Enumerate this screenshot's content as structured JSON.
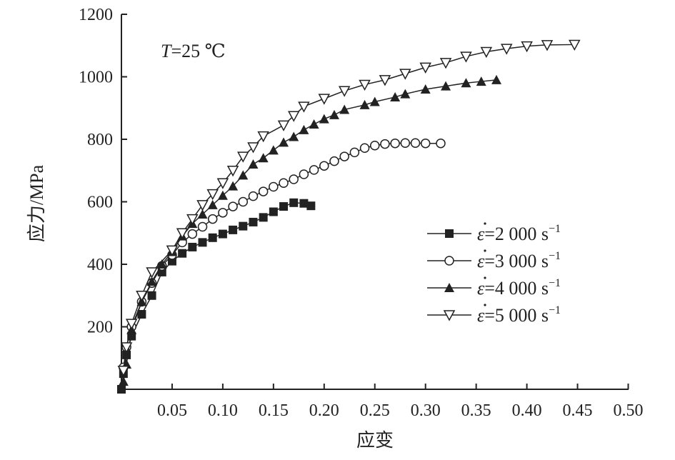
{
  "chart_data": {
    "type": "line",
    "xlabel": "应变",
    "ylabel": "应力/MPa",
    "annotation": {
      "italic": "T",
      "text": "=25 ℃"
    },
    "xlim": [
      0,
      0.5
    ],
    "ylim": [
      0,
      1200
    ],
    "xticks": [
      "0.05",
      "0.10",
      "0.15",
      "0.20",
      "0.25",
      "0.30",
      "0.35",
      "0.40",
      "0.45",
      "0.50"
    ],
    "yticks": [
      "200",
      "400",
      "600",
      "800",
      "1000",
      "1200"
    ],
    "grid": false,
    "legend_position": "right",
    "series": [
      {
        "name": "ε̇=2 000 s⁻¹",
        "rate": "=2 000 s",
        "marker": "filled-square",
        "x": [
          0,
          0.002,
          0.005,
          0.01,
          0.02,
          0.03,
          0.04,
          0.05,
          0.06,
          0.07,
          0.08,
          0.09,
          0.1,
          0.11,
          0.12,
          0.13,
          0.14,
          0.15,
          0.16,
          0.17,
          0.18,
          0.187
        ],
        "y": [
          0,
          50,
          110,
          170,
          240,
          300,
          375,
          410,
          435,
          455,
          470,
          485,
          497,
          510,
          522,
          535,
          550,
          568,
          585,
          597,
          595,
          587
        ]
      },
      {
        "name": "ε̇=3 000 s⁻¹",
        "rate": "=3 000 s",
        "marker": "open-circle",
        "x": [
          0.002,
          0.005,
          0.01,
          0.02,
          0.03,
          0.04,
          0.05,
          0.06,
          0.07,
          0.08,
          0.09,
          0.1,
          0.11,
          0.12,
          0.13,
          0.14,
          0.15,
          0.16,
          0.17,
          0.18,
          0.19,
          0.2,
          0.21,
          0.22,
          0.23,
          0.24,
          0.25,
          0.26,
          0.27,
          0.28,
          0.29,
          0.3,
          0.315
        ],
        "y": [
          70,
          135,
          200,
          280,
          340,
          395,
          430,
          470,
          497,
          520,
          545,
          565,
          585,
          600,
          618,
          633,
          648,
          660,
          672,
          688,
          702,
          715,
          730,
          745,
          758,
          772,
          780,
          785,
          787,
          788,
          788,
          787,
          787
        ]
      },
      {
        "name": "ε̇=4 000 s⁻¹",
        "rate": "=4 000 s",
        "marker": "filled-triangle-up",
        "x": [
          0.002,
          0.005,
          0.01,
          0.02,
          0.03,
          0.04,
          0.05,
          0.06,
          0.07,
          0.08,
          0.09,
          0.1,
          0.11,
          0.12,
          0.13,
          0.14,
          0.15,
          0.16,
          0.17,
          0.18,
          0.19,
          0.2,
          0.21,
          0.22,
          0.24,
          0.25,
          0.27,
          0.28,
          0.3,
          0.32,
          0.34,
          0.355,
          0.37
        ],
        "y": [
          25,
          80,
          190,
          280,
          345,
          400,
          440,
          490,
          530,
          560,
          590,
          620,
          650,
          685,
          720,
          740,
          765,
          790,
          808,
          830,
          848,
          865,
          878,
          895,
          910,
          920,
          935,
          945,
          960,
          970,
          980,
          985,
          990
        ]
      },
      {
        "name": "ε̇=5 000 s⁻¹",
        "rate": "=5 000 s",
        "marker": "open-triangle-down",
        "x": [
          0.002,
          0.005,
          0.01,
          0.02,
          0.03,
          0.05,
          0.06,
          0.07,
          0.08,
          0.09,
          0.1,
          0.11,
          0.12,
          0.13,
          0.14,
          0.16,
          0.17,
          0.18,
          0.2,
          0.22,
          0.24,
          0.26,
          0.28,
          0.3,
          0.32,
          0.34,
          0.36,
          0.38,
          0.4,
          0.42,
          0.447
        ],
        "y": [
          60,
          135,
          210,
          300,
          375,
          445,
          500,
          545,
          590,
          625,
          660,
          700,
          745,
          775,
          810,
          845,
          875,
          905,
          930,
          955,
          975,
          990,
          1010,
          1030,
          1045,
          1065,
          1080,
          1090,
          1098,
          1102,
          1103
        ]
      }
    ]
  }
}
